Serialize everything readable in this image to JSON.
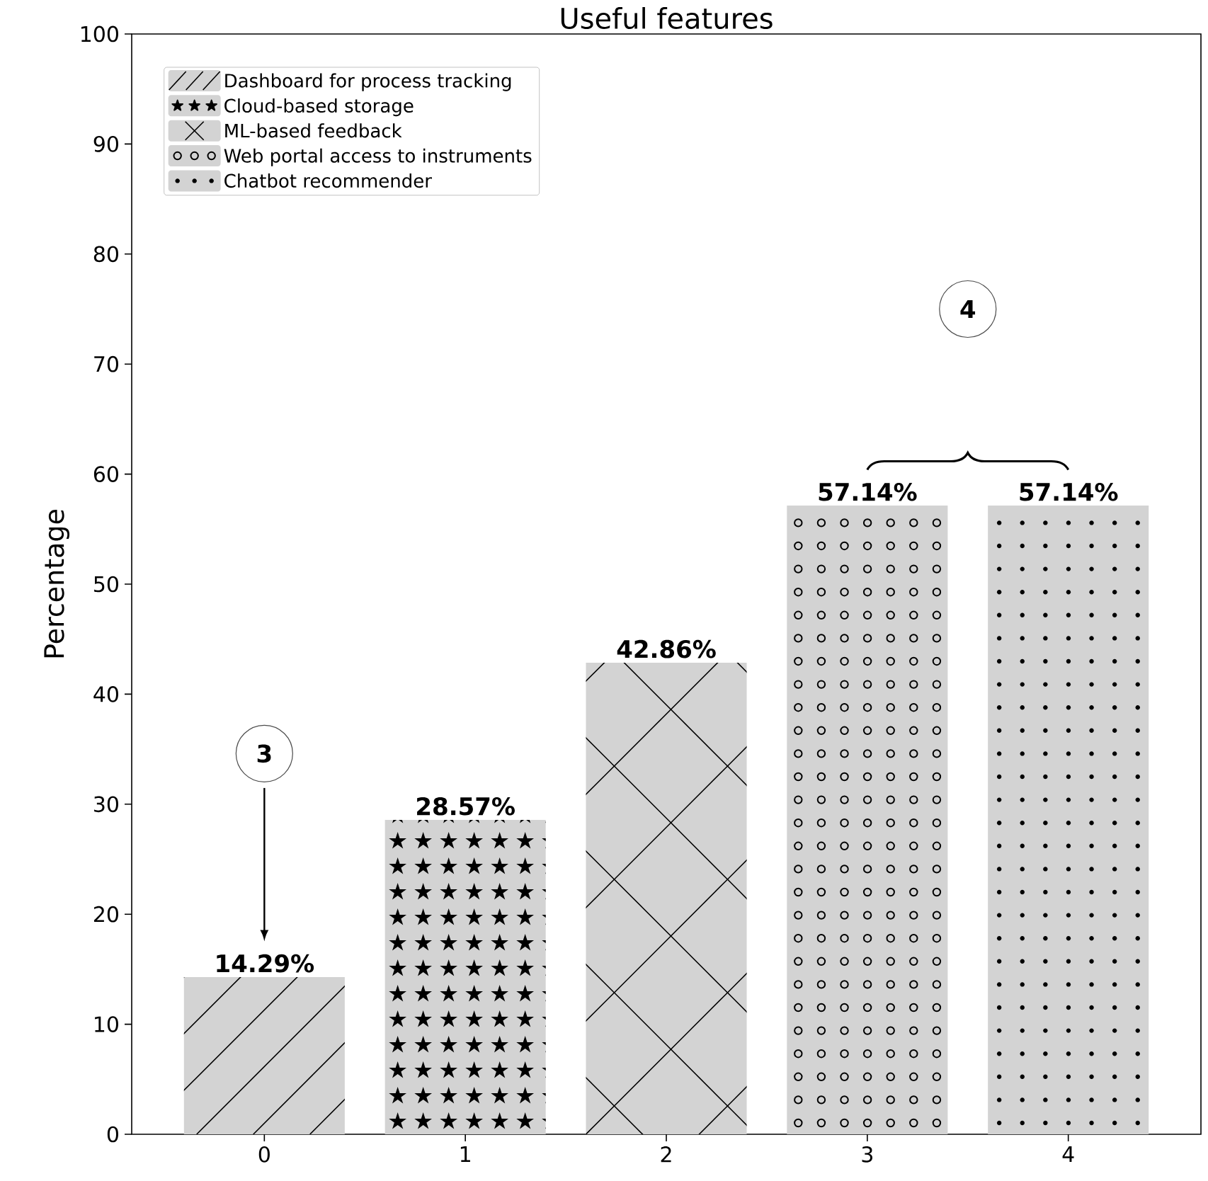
{
  "chart_data": {
    "type": "bar",
    "title": "Useful features",
    "ylabel": "Percentage",
    "x": [
      0,
      1,
      2,
      3,
      4
    ],
    "xlim": [
      -0.66,
      4.66
    ],
    "xticks": [
      0,
      1,
      2,
      3,
      4
    ],
    "ylim": [
      0,
      100
    ],
    "yticks": [
      0,
      10,
      20,
      30,
      40,
      50,
      60,
      70,
      80,
      90,
      100
    ],
    "series": [
      {
        "name": "Dashboard for process tracking",
        "color": "#d3d3d3",
        "values": [
          14.29,
          null,
          null,
          null,
          null
        ],
        "value_labels": [
          "14.29%",
          null,
          null,
          null,
          null
        ]
      },
      {
        "name": "Cloud-based storage",
        "color": "#d3d3d3",
        "values": [
          null,
          28.57,
          null,
          null,
          null
        ],
        "value_labels": [
          null,
          "28.57%",
          null,
          null,
          null
        ]
      },
      {
        "name": "ML-based feedback",
        "color": "#d3d3d3",
        "values": [
          null,
          null,
          42.86,
          null,
          null
        ],
        "value_labels": [
          null,
          null,
          "42.86%",
          null,
          null
        ]
      },
      {
        "name": "Web portal access to instruments",
        "color": "#d3d3d3",
        "values": [
          null,
          null,
          null,
          57.14,
          null
        ],
        "value_labels": [
          null,
          null,
          null,
          "57.14%",
          null
        ]
      },
      {
        "name": "Chatbot recommender",
        "color": "#d3d3d3",
        "values": [
          null,
          null,
          null,
          null,
          57.14
        ],
        "value_labels": [
          null,
          null,
          null,
          null,
          "57.14%"
        ]
      }
    ],
    "annotations": [
      {
        "text": "3",
        "x": 0,
        "y": 34.6
      },
      {
        "text": "4",
        "x": 3.5,
        "y": 75
      }
    ],
    "legend": "top left",
    "grid": false
  }
}
